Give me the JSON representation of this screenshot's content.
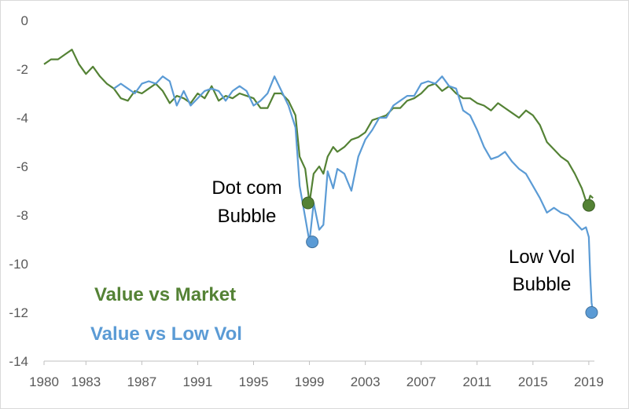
{
  "chart_data": {
    "type": "line",
    "title": "",
    "xlabel": "",
    "ylabel": "",
    "xlim": [
      1980,
      2019.4
    ],
    "ylim": [
      -14,
      0
    ],
    "x_ticks": [
      1980,
      1983,
      1987,
      1991,
      1995,
      1999,
      2003,
      2007,
      2011,
      2015,
      2019
    ],
    "x_tick_labels": [
      "1980",
      "1983",
      "1987",
      "1991",
      "1995",
      "1999",
      "2003",
      "2007",
      "2011",
      "2015",
      "2019"
    ],
    "y_ticks": [
      0,
      -2,
      -4,
      -6,
      -8,
      -10,
      -12,
      -14
    ],
    "y_tick_labels": [
      "0",
      "-2",
      "-4",
      "-6",
      "-8",
      "-10",
      "-12",
      "-14"
    ],
    "grid": false,
    "legend": "bottom-left, inside plot",
    "series": [
      {
        "name": "Value vs Market",
        "color": "#548235",
        "x": [
          1980.0,
          1980.5,
          1981.0,
          1981.5,
          1982.0,
          1982.5,
          1983.0,
          1983.5,
          1984.0,
          1984.5,
          1985.0,
          1985.5,
          1986.0,
          1986.5,
          1987.0,
          1987.5,
          1988.0,
          1988.5,
          1989.0,
          1989.5,
          1990.0,
          1990.5,
          1991.0,
          1991.5,
          1992.0,
          1992.5,
          1993.0,
          1993.5,
          1994.0,
          1994.5,
          1995.0,
          1995.5,
          1996.0,
          1996.5,
          1997.0,
          1997.5,
          1998.0,
          1998.3,
          1998.7,
          1999.0,
          1999.3,
          1999.7,
          2000.0,
          2000.3,
          2000.7,
          2001.0,
          2001.5,
          2002.0,
          2002.5,
          2003.0,
          2003.5,
          2004.0,
          2004.5,
          2005.0,
          2005.5,
          2006.0,
          2006.5,
          2007.0,
          2007.5,
          2008.0,
          2008.5,
          2009.0,
          2009.5,
          2010.0,
          2010.5,
          2011.0,
          2011.5,
          2012.0,
          2012.5,
          2013.0,
          2013.5,
          2014.0,
          2014.5,
          2015.0,
          2015.5,
          2016.0,
          2016.5,
          2017.0,
          2017.5,
          2018.0,
          2018.5,
          2018.9,
          2019.1,
          2019.3
        ],
        "values": [
          -1.8,
          -1.6,
          -1.6,
          -1.4,
          -1.2,
          -1.8,
          -2.2,
          -1.9,
          -2.3,
          -2.6,
          -2.8,
          -3.2,
          -3.3,
          -2.9,
          -3.0,
          -2.8,
          -2.6,
          -2.9,
          -3.4,
          -3.1,
          -3.2,
          -3.4,
          -3.0,
          -3.2,
          -2.7,
          -3.3,
          -3.1,
          -3.2,
          -3.0,
          -3.1,
          -3.2,
          -3.6,
          -3.6,
          -3.0,
          -3.0,
          -3.3,
          -3.9,
          -5.6,
          -6.1,
          -7.5,
          -6.3,
          -6.0,
          -6.3,
          -5.6,
          -5.2,
          -5.4,
          -5.2,
          -4.9,
          -4.8,
          -4.6,
          -4.1,
          -4.0,
          -3.9,
          -3.6,
          -3.6,
          -3.3,
          -3.2,
          -3.0,
          -2.7,
          -2.6,
          -2.9,
          -2.7,
          -3.0,
          -3.2,
          -3.2,
          -3.4,
          -3.5,
          -3.7,
          -3.4,
          -3.6,
          -3.8,
          -4.0,
          -3.7,
          -3.9,
          -4.3,
          -5.0,
          -5.3,
          -5.6,
          -5.8,
          -6.3,
          -6.9,
          -7.6,
          -7.2,
          -7.3
        ]
      },
      {
        "name": "Value vs Low Vol",
        "color": "#5b9bd5",
        "x": [
          1985.0,
          1985.5,
          1986.0,
          1986.5,
          1987.0,
          1987.5,
          1988.0,
          1988.5,
          1989.0,
          1989.5,
          1990.0,
          1990.5,
          1991.0,
          1991.5,
          1992.0,
          1992.5,
          1993.0,
          1993.5,
          1994.0,
          1994.5,
          1995.0,
          1995.5,
          1996.0,
          1996.5,
          1997.0,
          1997.5,
          1998.0,
          1998.3,
          1998.7,
          1999.0,
          1999.3,
          1999.7,
          2000.0,
          2000.3,
          2000.7,
          2001.0,
          2001.5,
          2002.0,
          2002.5,
          2003.0,
          2003.5,
          2004.0,
          2004.5,
          2005.0,
          2005.5,
          2006.0,
          2006.5,
          2007.0,
          2007.5,
          2008.0,
          2008.5,
          2009.0,
          2009.5,
          2010.0,
          2010.5,
          2011.0,
          2011.5,
          2012.0,
          2012.5,
          2013.0,
          2013.5,
          2014.0,
          2014.5,
          2015.0,
          2015.5,
          2016.0,
          2016.5,
          2017.0,
          2017.5,
          2018.0,
          2018.5,
          2018.8,
          2019.0,
          2019.1,
          2019.2,
          2019.3
        ],
        "values": [
          -2.8,
          -2.6,
          -2.8,
          -3.0,
          -2.6,
          -2.5,
          -2.6,
          -2.3,
          -2.5,
          -3.5,
          -2.9,
          -3.5,
          -3.2,
          -2.9,
          -2.8,
          -2.9,
          -3.3,
          -2.9,
          -2.7,
          -2.9,
          -3.5,
          -3.3,
          -3.0,
          -2.3,
          -2.9,
          -3.5,
          -4.4,
          -6.8,
          -8.1,
          -9.1,
          -7.5,
          -8.6,
          -8.4,
          -6.2,
          -6.9,
          -6.1,
          -6.3,
          -7.0,
          -5.6,
          -4.9,
          -4.5,
          -4.0,
          -4.0,
          -3.5,
          -3.3,
          -3.1,
          -3.1,
          -2.6,
          -2.5,
          -2.6,
          -2.3,
          -2.7,
          -2.8,
          -3.7,
          -3.9,
          -4.5,
          -5.2,
          -5.7,
          -5.6,
          -5.4,
          -5.8,
          -6.1,
          -6.3,
          -6.8,
          -7.3,
          -7.9,
          -7.7,
          -7.9,
          -8.0,
          -8.3,
          -8.6,
          -8.5,
          -8.9,
          -10.5,
          -11.6,
          -12.0
        ]
      }
    ],
    "annotations": [
      {
        "lines": [
          "Dot com",
          "Bubble"
        ]
      },
      {
        "lines": [
          "Low Vol",
          "Bubble"
        ]
      }
    ],
    "markers": [
      {
        "series": "Value vs Market",
        "x": 1998.9,
        "y": -7.5
      },
      {
        "series": "Value vs Low Vol",
        "x": 1999.2,
        "y": -9.1
      },
      {
        "series": "Value vs Market",
        "x": 2019.0,
        "y": -7.6
      },
      {
        "series": "Value vs Low Vol",
        "x": 2019.2,
        "y": -12.0
      }
    ]
  }
}
